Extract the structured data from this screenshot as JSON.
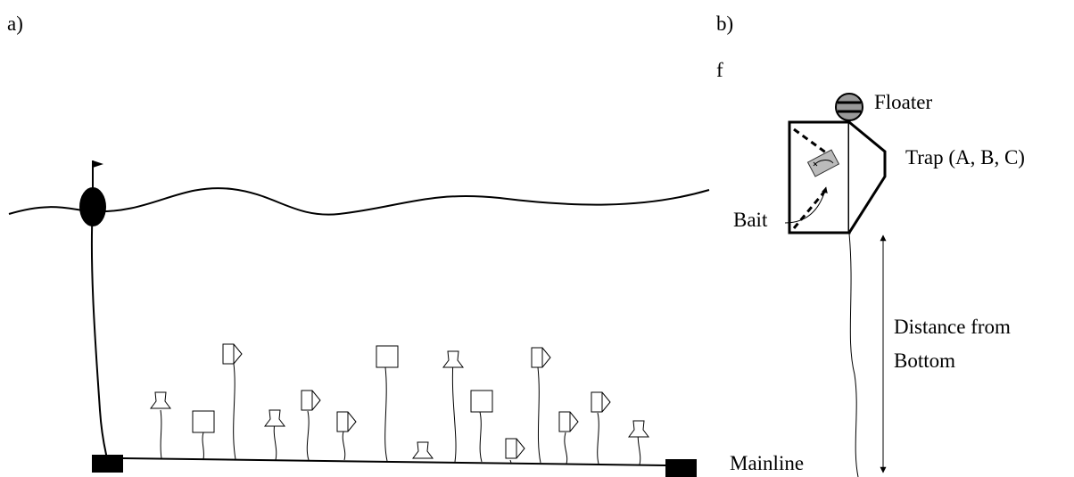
{
  "panels": {
    "a": {
      "label": "a)"
    },
    "b": {
      "label": "b)",
      "marker": "f"
    }
  },
  "labels": {
    "floater": "Floater",
    "trap": "Trap (A, B, C)",
    "bait": "Bait",
    "distance": [
      "Distance from",
      "Bottom"
    ],
    "mainline": "Mainline"
  }
}
